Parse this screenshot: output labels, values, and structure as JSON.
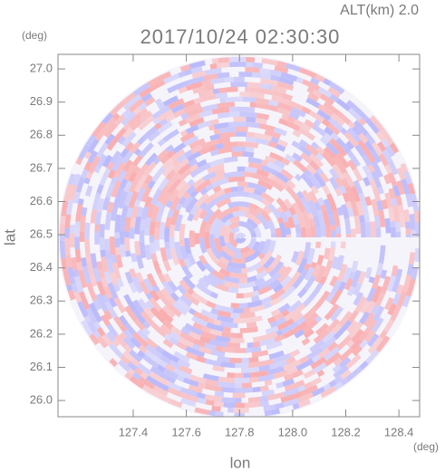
{
  "chart_data": {
    "type": "radar-ppi",
    "title": "2017/10/24 02:30:30",
    "subtitle": "ALT(km) 2.0",
    "x_label": "lon",
    "x_unit": "(deg)",
    "y_label": "lat",
    "y_unit": "(deg)",
    "xlim": [
      127.117,
      128.478
    ],
    "xticks": [
      127.4,
      127.6,
      127.8,
      {
        "value": 128,
        "label": "128.0"
      },
      128.2,
      128.4
    ],
    "ylim": [
      25.951,
      27.044
    ],
    "yticks": [
      {
        "value": 26,
        "label": "26.0"
      },
      26.1,
      26.2,
      26.3,
      26.4,
      26.5,
      26.6,
      26.7,
      26.8,
      26.9,
      {
        "value": 27,
        "label": "27.0"
      }
    ]
  }
}
